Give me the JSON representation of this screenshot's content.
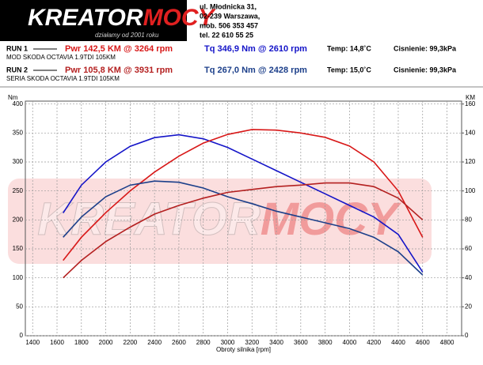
{
  "logo": {
    "part1": "KREATOR",
    "part2": "MOCY",
    "slogan": "działamy od 2001 roku"
  },
  "contact": [
    "ul. Młodnicka 31,",
    "02-239  Warszawa,",
    "mob.  506 353 457",
    "tel.  22 610 55 25"
  ],
  "runs": [
    {
      "label": "RUN 1",
      "power": "Pwr  142,5 KM @ 3264 rpm",
      "torque": "Tq 346,9 Nm @ 2610 rpm",
      "temp": "Temp: 14,8˚C",
      "pressure": "Cisnienie: 99,3kPa",
      "description": "MOD SKODA OCTAVIA 1.9TDI 105KM"
    },
    {
      "label": "RUN 2",
      "power": "Pwr  105,8 KM @ 3931 rpm",
      "torque": "Tq 267,0 Nm @ 2428 rpm",
      "temp": "Temp: 15,0˚C",
      "pressure": "Cisnienie: 99,3kPa",
      "description": "SERIA SKODA OCTAVIA 1.9TDI 105KM"
    }
  ],
  "chart_data": {
    "type": "line",
    "y_label": "Nm",
    "y2_label": "KM",
    "x_label": "Obroty silnika [rpm]",
    "grid": true,
    "x": [
      1650,
      1800,
      2000,
      2200,
      2400,
      2600,
      2800,
      3000,
      3200,
      3400,
      3600,
      3800,
      4000,
      4200,
      4400,
      4600
    ],
    "xlim": [
      1340,
      4920
    ],
    "xticks": [
      1400,
      1600,
      1800,
      2000,
      2200,
      2400,
      2600,
      2800,
      3000,
      3200,
      3400,
      3600,
      3800,
      4000,
      4200,
      4400,
      4600,
      4800
    ],
    "ylim": [
      0,
      405
    ],
    "yticks": [
      0,
      50,
      100,
      150,
      200,
      250,
      300,
      350,
      400
    ],
    "y2lim": [
      0,
      162
    ],
    "y2ticks": [
      0,
      20,
      40,
      60,
      80,
      100,
      120,
      140,
      160
    ],
    "series": [
      {
        "color": "#1414c8",
        "values": [
          212,
          260,
          300,
          327,
          342,
          347,
          340,
          325,
          305,
          285,
          265,
          245,
          225,
          205,
          175,
          110
        ]
      },
      {
        "color": "#d81818",
        "axis": "y2",
        "values": [
          52,
          68,
          85,
          100,
          113,
          124,
          133,
          139,
          142.4,
          142,
          140,
          137,
          131,
          120,
          100,
          68
        ]
      },
      {
        "color": "#1c3f8a",
        "values": [
          170,
          205,
          240,
          260,
          267,
          265,
          255,
          240,
          228,
          215,
          205,
          195,
          185,
          170,
          145,
          105
        ]
      },
      {
        "color": "#b42020",
        "axis": "y2",
        "values": [
          40,
          52,
          65,
          75,
          84,
          90,
          95,
          99,
          101,
          103,
          104,
          105.5,
          105.5,
          103,
          95,
          80
        ]
      }
    ]
  }
}
